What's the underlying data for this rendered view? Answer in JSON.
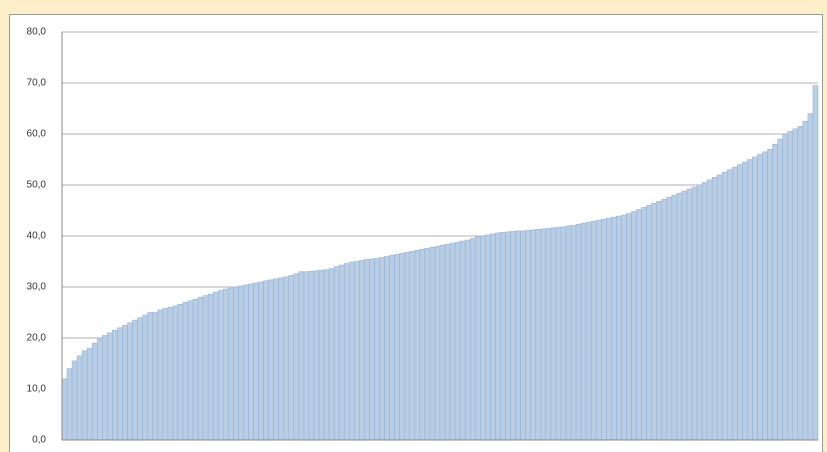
{
  "chart_data": {
    "type": "bar",
    "categories": [
      null,
      null,
      null,
      null,
      null,
      null,
      null,
      null,
      null,
      null,
      null,
      null,
      null,
      null,
      null,
      null,
      null,
      null,
      null,
      null,
      null,
      null,
      null,
      null,
      null,
      null,
      null,
      null,
      null,
      null,
      null,
      null,
      null,
      null,
      null,
      null,
      null,
      null,
      null,
      null,
      null,
      null,
      null,
      null,
      null,
      null,
      null,
      null,
      null,
      null,
      null,
      null,
      null,
      null,
      null,
      null,
      null,
      null,
      null,
      null,
      null,
      null,
      null,
      null,
      null,
      null,
      null,
      null,
      null,
      null,
      null,
      null,
      null,
      null,
      null,
      null,
      null,
      null,
      null,
      null,
      null,
      null,
      null,
      null,
      null,
      null,
      null,
      null,
      null,
      null,
      null,
      null,
      null,
      null,
      null,
      null,
      null,
      null,
      null,
      null,
      null,
      null,
      null,
      null,
      null,
      null,
      null,
      null,
      null,
      null,
      null,
      null,
      null,
      null,
      null,
      null,
      null,
      null,
      null,
      null,
      null,
      null,
      null,
      null,
      null,
      null,
      null,
      null,
      null,
      null,
      null,
      null,
      null,
      null,
      null,
      null,
      null,
      null,
      null,
      null,
      null,
      null,
      null,
      null,
      null,
      null,
      null,
      null,
      null,
      null
    ],
    "values": [
      12,
      14,
      15.5,
      16.5,
      17.5,
      18,
      19,
      20,
      20.5,
      21,
      21.5,
      22,
      22.5,
      23,
      23.5,
      24,
      24.5,
      25,
      25,
      25.5,
      25.8,
      26,
      26.3,
      26.6,
      27,
      27.3,
      27.6,
      28,
      28.3,
      28.6,
      29,
      29.3,
      29.6,
      29.8,
      30,
      30.2,
      30.4,
      30.6,
      30.8,
      31,
      31.2,
      31.4,
      31.6,
      31.8,
      32,
      32.3,
      32.6,
      33,
      33,
      33.1,
      33.2,
      33.3,
      33.4,
      33.6,
      34,
      34.3,
      34.6,
      34.9,
      35,
      35.2,
      35.4,
      35.5,
      35.6,
      35.8,
      36,
      36.2,
      36.4,
      36.6,
      36.8,
      37,
      37.2,
      37.4,
      37.6,
      37.8,
      38,
      38.2,
      38.4,
      38.6,
      38.8,
      39,
      39.2,
      39.5,
      39.8,
      40,
      40.2,
      40.4,
      40.6,
      40.7,
      40.8,
      40.9,
      41,
      41,
      41.1,
      41.2,
      41.3,
      41.4,
      41.5,
      41.6,
      41.7,
      41.8,
      42,
      42.1,
      42.3,
      42.5,
      42.7,
      42.9,
      43.1,
      43.3,
      43.5,
      43.7,
      43.9,
      44.1,
      44.4,
      44.8,
      45.2,
      45.6,
      46,
      46.4,
      46.8,
      47.2,
      47.6,
      48,
      48.4,
      48.8,
      49.2,
      49.6,
      50,
      50.5,
      51,
      51.5,
      52,
      52.5,
      53,
      53.5,
      54,
      54.5,
      55,
      55.5,
      56,
      56.5,
      57,
      58,
      59,
      60,
      60.5,
      61,
      61.5,
      62.5,
      64,
      69.5
    ],
    "color": "#b9cde5",
    "ylim": [
      0,
      80
    ],
    "yticks": [
      {
        "value": 0,
        "label": "0,0"
      },
      {
        "value": 10,
        "label": "10,0"
      },
      {
        "value": 20,
        "label": "20,0"
      },
      {
        "value": 30,
        "label": "30,0"
      },
      {
        "value": 40,
        "label": "40,0"
      },
      {
        "value": 50,
        "label": "50,0"
      },
      {
        "value": 60,
        "label": "60,0"
      },
      {
        "value": 70,
        "label": "70,0"
      },
      {
        "value": 80,
        "label": "80,0"
      }
    ],
    "grid": true
  }
}
